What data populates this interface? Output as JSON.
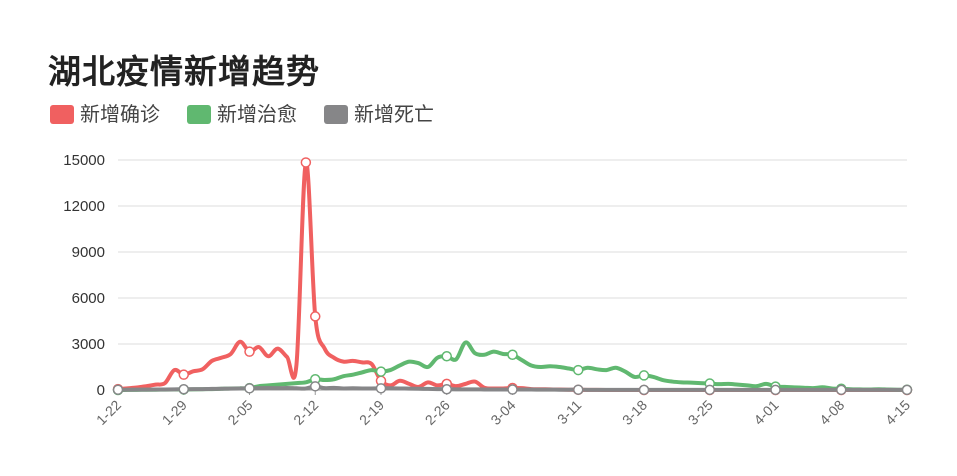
{
  "chart_data": {
    "type": "line",
    "title": "湖北疫情新增趋势",
    "xlabel": "",
    "ylabel": "",
    "ylim": [
      0,
      15000
    ],
    "yticks": [
      0,
      3000,
      6000,
      9000,
      12000,
      15000
    ],
    "grid": true,
    "legend_position": "top-left",
    "x": [
      "1-22",
      "1-23",
      "1-24",
      "1-25",
      "1-26",
      "1-27",
      "1-28",
      "1-29",
      "1-30",
      "1-31",
      "2-01",
      "2-02",
      "2-03",
      "2-04",
      "2-05",
      "2-06",
      "2-07",
      "2-08",
      "2-09",
      "2-10",
      "2-11",
      "2-12",
      "2-13",
      "2-14",
      "2-15",
      "2-16",
      "2-17",
      "2-18",
      "2-19",
      "2-20",
      "2-21",
      "2-22",
      "2-23",
      "2-24",
      "2-25",
      "2-26",
      "2-27",
      "2-28",
      "2-29",
      "3-01",
      "3-02",
      "3-03",
      "3-04",
      "3-05",
      "3-06",
      "3-07",
      "3-08",
      "3-09",
      "3-10",
      "3-11",
      "3-12",
      "3-13",
      "3-14",
      "3-15",
      "3-16",
      "3-17",
      "3-18",
      "3-19",
      "3-20",
      "3-21",
      "3-22",
      "3-23",
      "3-24",
      "3-25",
      "3-26",
      "3-27",
      "3-28",
      "3-29",
      "3-30",
      "3-31",
      "4-01",
      "4-02",
      "4-03",
      "4-04",
      "4-05",
      "4-06",
      "4-07",
      "4-08",
      "4-09",
      "4-10",
      "4-11",
      "4-12",
      "4-13",
      "4-14",
      "4-15"
    ],
    "x_tick_labels": [
      "1-22",
      "1-29",
      "2-05",
      "2-12",
      "2-19",
      "2-26",
      "3-04",
      "3-11",
      "3-18",
      "3-25",
      "4-01",
      "4-08",
      "4-15"
    ],
    "series": [
      {
        "name": "新增确诊",
        "color": "#f06060",
        "values": [
          60,
          110,
          160,
          250,
          350,
          450,
          1300,
          1000,
          1220,
          1350,
          1900,
          2100,
          2350,
          3150,
          2500,
          2800,
          2200,
          2700,
          2150,
          1650,
          14840,
          4800,
          2700,
          2100,
          1850,
          1900,
          1800,
          1700,
          600,
          300,
          600,
          400,
          200,
          500,
          300,
          400,
          250,
          400,
          550,
          150,
          100,
          100,
          130,
          120,
          60,
          50,
          40,
          30,
          15,
          10,
          10,
          5,
          3,
          4,
          1,
          1,
          1,
          0,
          0,
          0,
          0,
          0,
          0,
          0,
          0,
          0,
          0,
          0,
          0,
          0,
          0,
          0,
          0,
          0,
          0,
          0,
          0,
          0,
          0,
          0,
          0,
          0,
          0,
          0,
          0
        ]
      },
      {
        "name": "新增治愈",
        "color": "#60b870",
        "values": [
          0,
          5,
          10,
          15,
          20,
          25,
          30,
          35,
          40,
          50,
          60,
          80,
          100,
          110,
          120,
          250,
          300,
          350,
          400,
          450,
          500,
          700,
          650,
          700,
          900,
          1000,
          1150,
          1300,
          1200,
          1300,
          1600,
          1850,
          1750,
          1500,
          2100,
          2200,
          2000,
          3100,
          2400,
          2300,
          2500,
          2350,
          2300,
          1950,
          1600,
          1500,
          1550,
          1500,
          1400,
          1300,
          1450,
          1350,
          1300,
          1450,
          1200,
          850,
          950,
          850,
          650,
          550,
          500,
          480,
          450,
          420,
          380,
          400,
          350,
          300,
          250,
          400,
          220,
          200,
          170,
          150,
          120,
          180,
          100,
          80,
          50,
          40,
          30,
          50,
          30,
          20,
          20
        ]
      },
      {
        "name": "新增死亡",
        "color": "#868688",
        "values": [
          20,
          20,
          25,
          25,
          30,
          35,
          40,
          50,
          55,
          60,
          70,
          80,
          90,
          100,
          110,
          120,
          130,
          120,
          130,
          110,
          100,
          240,
          120,
          140,
          100,
          110,
          100,
          100,
          110,
          110,
          100,
          90,
          80,
          70,
          60,
          50,
          40,
          40,
          40,
          35,
          30,
          30,
          30,
          30,
          30,
          25,
          25,
          20,
          20,
          20,
          10,
          10,
          10,
          10,
          10,
          10,
          10,
          10,
          10,
          10,
          10,
          10,
          10,
          10,
          10,
          10,
          10,
          10,
          10,
          10,
          10,
          10,
          10,
          10,
          10,
          10,
          10,
          10,
          10,
          10,
          10,
          10,
          10,
          10,
          10
        ]
      }
    ],
    "marker_interval": 7
  }
}
